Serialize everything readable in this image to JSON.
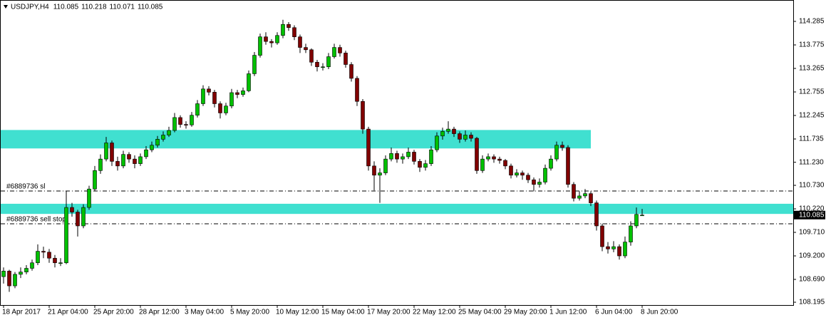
{
  "chart_data": {
    "type": "candlestick",
    "symbol": "USDJPY,H4",
    "candles": [
      [
        108.75,
        108.95,
        108.6,
        108.87
      ],
      [
        108.87,
        108.9,
        108.42,
        108.55
      ],
      [
        108.55,
        108.85,
        108.5,
        108.8
      ],
      [
        108.8,
        108.95,
        108.72,
        108.85
      ],
      [
        108.85,
        109.0,
        108.8,
        108.93
      ],
      [
        108.93,
        109.12,
        108.88,
        109.05
      ],
      [
        109.05,
        109.45,
        109.0,
        109.3
      ],
      [
        109.3,
        109.4,
        109.15,
        109.28
      ],
      [
        109.28,
        109.35,
        109.05,
        109.15
      ],
      [
        109.15,
        109.22,
        108.95,
        109.05
      ],
      [
        109.05,
        109.15,
        108.98,
        109.05
      ],
      [
        109.05,
        110.6,
        109.02,
        110.25
      ],
      [
        110.25,
        110.35,
        110.05,
        110.15
      ],
      [
        110.15,
        110.2,
        109.62,
        109.85
      ],
      [
        109.85,
        110.32,
        109.8,
        110.25
      ],
      [
        110.25,
        110.72,
        110.2,
        110.65
      ],
      [
        110.65,
        111.15,
        110.6,
        111.05
      ],
      [
        111.05,
        111.4,
        110.98,
        111.3
      ],
      [
        111.3,
        111.78,
        111.25,
        111.65
      ],
      [
        111.65,
        111.7,
        111.15,
        111.25
      ],
      [
        111.25,
        111.35,
        111.05,
        111.15
      ],
      [
        111.15,
        111.48,
        111.1,
        111.4
      ],
      [
        111.4,
        111.45,
        111.22,
        111.3
      ],
      [
        111.3,
        111.38,
        111.1,
        111.2
      ],
      [
        111.2,
        111.42,
        111.15,
        111.35
      ],
      [
        111.35,
        111.58,
        111.3,
        111.5
      ],
      [
        111.5,
        111.68,
        111.45,
        111.6
      ],
      [
        111.6,
        111.8,
        111.55,
        111.73
      ],
      [
        111.73,
        111.9,
        111.68,
        111.82
      ],
      [
        111.82,
        112.0,
        111.78,
        111.92
      ],
      [
        111.92,
        112.3,
        111.88,
        112.2
      ],
      [
        112.2,
        112.25,
        111.98,
        112.05
      ],
      [
        112.05,
        112.12,
        111.96,
        112.04
      ],
      [
        112.04,
        112.32,
        112.0,
        112.25
      ],
      [
        112.25,
        112.58,
        112.2,
        112.5
      ],
      [
        112.5,
        112.9,
        112.45,
        112.82
      ],
      [
        112.82,
        112.88,
        112.68,
        112.75
      ],
      [
        112.75,
        112.8,
        112.42,
        112.5
      ],
      [
        112.5,
        112.55,
        112.18,
        112.3
      ],
      [
        112.3,
        112.52,
        112.25,
        112.45
      ],
      [
        112.45,
        112.82,
        112.4,
        112.74
      ],
      [
        112.74,
        112.8,
        112.62,
        112.7
      ],
      [
        112.7,
        112.85,
        112.65,
        112.78
      ],
      [
        112.78,
        113.22,
        112.75,
        113.15
      ],
      [
        113.15,
        113.62,
        113.1,
        113.55
      ],
      [
        113.55,
        114.02,
        113.5,
        113.95
      ],
      [
        113.95,
        114.05,
        113.78,
        113.85
      ],
      [
        113.85,
        113.9,
        113.72,
        113.82
      ],
      [
        113.82,
        114.05,
        113.78,
        113.98
      ],
      [
        113.98,
        114.32,
        113.92,
        114.22
      ],
      [
        114.22,
        114.27,
        114.08,
        114.15
      ],
      [
        114.15,
        114.2,
        113.88,
        113.95
      ],
      [
        113.95,
        114.0,
        113.6,
        113.72
      ],
      [
        113.72,
        113.8,
        113.6,
        113.67
      ],
      [
        113.67,
        113.7,
        113.32,
        113.4
      ],
      [
        113.4,
        113.45,
        113.2,
        113.3
      ],
      [
        113.3,
        113.38,
        113.22,
        113.3
      ],
      [
        113.3,
        113.6,
        113.25,
        113.52
      ],
      [
        113.52,
        113.8,
        113.48,
        113.72
      ],
      [
        113.72,
        113.78,
        113.52,
        113.6
      ],
      [
        113.6,
        113.65,
        113.28,
        113.35
      ],
      [
        113.35,
        113.4,
        112.98,
        113.05
      ],
      [
        113.05,
        113.1,
        112.45,
        112.55
      ],
      [
        112.55,
        112.6,
        111.85,
        111.95
      ],
      [
        111.95,
        112.0,
        111.05,
        111.15
      ],
      [
        111.15,
        111.25,
        110.62,
        110.95
      ],
      [
        110.95,
        111.1,
        110.35,
        111.0
      ],
      [
        111.0,
        111.38,
        110.95,
        111.3
      ],
      [
        111.3,
        111.55,
        111.25,
        111.42
      ],
      [
        111.42,
        111.48,
        111.22,
        111.3
      ],
      [
        111.3,
        111.42,
        111.2,
        111.35
      ],
      [
        111.35,
        111.55,
        111.3,
        111.45
      ],
      [
        111.45,
        111.5,
        111.18,
        111.25
      ],
      [
        111.25,
        111.3,
        111.02,
        111.12
      ],
      [
        111.12,
        111.28,
        111.05,
        111.2
      ],
      [
        111.2,
        111.58,
        111.15,
        111.5
      ],
      [
        111.5,
        111.88,
        111.45,
        111.8
      ],
      [
        111.8,
        111.98,
        111.72,
        111.9
      ],
      [
        111.9,
        112.12,
        111.85,
        111.95
      ],
      [
        111.95,
        112.0,
        111.78,
        111.85
      ],
      [
        111.85,
        111.9,
        111.65,
        111.73
      ],
      [
        111.73,
        111.92,
        111.68,
        111.82
      ],
      [
        111.82,
        111.88,
        111.68,
        111.75
      ],
      [
        111.75,
        111.78,
        110.98,
        111.05
      ],
      [
        111.05,
        111.38,
        111.0,
        111.3
      ],
      [
        111.3,
        111.42,
        111.25,
        111.35
      ],
      [
        111.35,
        111.4,
        111.22,
        111.3
      ],
      [
        111.3,
        111.35,
        111.2,
        111.27
      ],
      [
        111.27,
        111.3,
        111.08,
        111.15
      ],
      [
        111.15,
        111.2,
        110.88,
        110.95
      ],
      [
        110.95,
        111.08,
        110.9,
        111.0
      ],
      [
        111.0,
        111.05,
        110.85,
        110.95
      ],
      [
        110.95,
        111.0,
        110.78,
        110.85
      ],
      [
        110.85,
        110.9,
        110.6,
        110.75
      ],
      [
        110.75,
        110.88,
        110.68,
        110.8
      ],
      [
        110.8,
        111.18,
        110.75,
        111.1
      ],
      [
        111.1,
        111.38,
        111.05,
        111.3
      ],
      [
        111.3,
        111.68,
        111.25,
        111.6
      ],
      [
        111.6,
        111.68,
        111.48,
        111.55
      ],
      [
        111.55,
        111.6,
        110.68,
        110.75
      ],
      [
        110.75,
        110.8,
        110.38,
        110.45
      ],
      [
        110.45,
        110.6,
        110.4,
        110.5
      ],
      [
        110.5,
        110.65,
        110.45,
        110.55
      ],
      [
        110.55,
        110.6,
        110.28,
        110.35
      ],
      [
        110.35,
        110.4,
        109.75,
        109.85
      ],
      [
        109.85,
        109.9,
        109.3,
        109.4
      ],
      [
        109.4,
        109.5,
        109.25,
        109.35
      ],
      [
        109.35,
        109.52,
        109.28,
        109.4
      ],
      [
        109.4,
        109.45,
        109.12,
        109.2
      ],
      [
        109.2,
        109.62,
        109.15,
        109.5
      ],
      [
        109.5,
        109.95,
        109.42,
        109.85
      ],
      [
        109.85,
        110.25,
        109.8,
        110.1
      ],
      [
        110.085,
        110.218,
        110.071,
        110.085
      ]
    ],
    "up_color": "#00c000",
    "down_color": "#800000",
    "ylim": [
      108.134,
      114.749
    ],
    "yticks": [
      114.285,
      113.775,
      113.265,
      112.755,
      112.245,
      111.735,
      {
        "value": 111.23,
        "label": "111.230"
      },
      {
        "value": 110.73,
        "label": "110.730"
      },
      {
        "value": 110.22,
        "label": "110.220"
      },
      {
        "value": 109.71,
        "label": "109.710"
      },
      {
        "value": 109.2,
        "label": "109.200"
      },
      {
        "value": 108.69,
        "label": "108.690"
      },
      108.195
    ],
    "xticks": [
      {
        "value": 0,
        "label": "18 Apr 2017"
      },
      {
        "value": 8,
        "label": "21 Apr 04:00"
      },
      {
        "value": 16,
        "label": "25 Apr 20:00"
      },
      {
        "value": 24,
        "label": "28 Apr 12:00"
      },
      {
        "value": 32,
        "label": "3 May 04:00"
      },
      {
        "value": 40,
        "label": "5 May 20:00"
      },
      {
        "value": 48,
        "label": "10 May 12:00"
      },
      {
        "value": 56,
        "label": "15 May 04:00"
      },
      {
        "value": 64,
        "label": "17 May 20:00"
      },
      {
        "value": 72,
        "label": "22 May 12:00"
      },
      {
        "value": 80,
        "label": "25 May 04:00"
      },
      {
        "value": 88,
        "label": "29 May 20:00"
      },
      {
        "value": 96,
        "label": "1 Jun 12:00"
      },
      {
        "value": 104,
        "label": "6 Jun 04:00"
      },
      {
        "value": 112,
        "label": "8 Jun 20:00"
      }
    ],
    "zones": [
      {
        "from": 111.53,
        "to": 111.93,
        "end": 103,
        "color": "#40e0d0"
      },
      {
        "from": 110.11,
        "to": 110.33,
        "color": "#40e0d0"
      }
    ],
    "order_lines": [
      {
        "label": "#6889736 sl",
        "price": 110.607
      },
      {
        "label": "#6889736 sell stop",
        "price": 109.896
      }
    ]
  }
}
